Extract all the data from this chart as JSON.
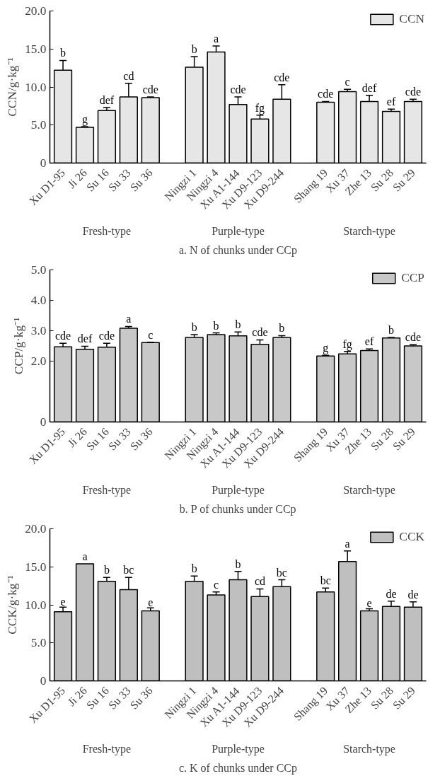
{
  "chart_data": [
    {
      "type": "bar",
      "title": "a. N of chunks under CCp",
      "ylabel": "CCN/g·kg⁻¹",
      "categories": [
        "Xu D1-95",
        "Ji 26",
        "Su 16",
        "Su 33",
        "Su 36",
        null,
        "Ningzi 1",
        "Ningzi 4",
        "Xu A1-144",
        "Xu D9-123",
        "Xu D9-244",
        null,
        "Shang 19",
        "Xu 37",
        "Zhe 13",
        "Su 28",
        "Su 29"
      ],
      "series": [
        {
          "name": "CCN",
          "color": "#e6e6e6",
          "values": [
            12.2,
            4.7,
            6.9,
            8.7,
            8.6,
            null,
            12.6,
            14.6,
            7.7,
            5.8,
            8.4,
            null,
            8.0,
            9.4,
            8.1,
            6.8,
            8.1
          ],
          "errors": [
            1.3,
            0.1,
            0.4,
            1.8,
            0.1,
            null,
            1.4,
            0.8,
            1.0,
            0.5,
            1.9,
            null,
            0.1,
            0.3,
            0.8,
            0.3,
            0.3
          ],
          "value_labels": [
            "b",
            "g",
            "def",
            "cd",
            "cde",
            null,
            "b",
            "a",
            "cde",
            "fg",
            "cde",
            null,
            "cde",
            "c",
            "def",
            "ef",
            "cde"
          ]
        }
      ],
      "annotations": [
        "Fresh-type",
        "Purple-type",
        "Starch-type"
      ],
      "ylim": [
        0,
        20
      ],
      "yticks": [
        0,
        {
          "value": 5,
          "label": "5.0"
        },
        {
          "value": 10,
          "label": "10.0"
        },
        {
          "value": 15,
          "label": "15.0"
        },
        {
          "value": 20,
          "label": "20.0"
        }
      ],
      "legend": "top right"
    },
    {
      "type": "bar",
      "title": "b. P of chunks under CCp",
      "ylabel": "CCP/g·kg⁻¹",
      "categories": [
        "Xu D1-95",
        "Ji 26",
        "Su 16",
        "Su 33",
        "Su 36",
        null,
        "Ningzi 1",
        "Ningzi 4",
        "Xu A1-144",
        "Xu D9-123",
        "Xu D9-244",
        null,
        "Shang 19",
        "Xu 37",
        "Zhe 13",
        "Su 28",
        "Su 29"
      ],
      "series": [
        {
          "name": "CCP",
          "color": "#c8c8c8",
          "values": [
            2.47,
            2.39,
            2.46,
            3.08,
            2.61,
            null,
            2.78,
            2.87,
            2.83,
            2.55,
            2.78,
            null,
            2.17,
            2.24,
            2.35,
            2.76,
            2.5
          ],
          "errors": [
            0.12,
            0.1,
            0.13,
            0.06,
            0.01,
            null,
            0.09,
            0.06,
            0.13,
            0.15,
            0.06,
            null,
            0.02,
            0.08,
            0.05,
            0.02,
            0.04
          ],
          "value_labels": [
            "cde",
            "def",
            "cde",
            "a",
            "c",
            null,
            "b",
            "b",
            "b",
            "cde",
            "b",
            null,
            "g",
            "fg",
            "ef",
            "b",
            "cde"
          ]
        }
      ],
      "annotations": [
        "Fresh-type",
        "Purple-type",
        "Starch-type"
      ],
      "ylim": [
        0,
        5
      ],
      "yticks": [
        0,
        {
          "value": 2,
          "label": "2.0"
        },
        {
          "value": 3,
          "label": "3.0"
        },
        {
          "value": 4,
          "label": "4.0"
        },
        {
          "value": 5,
          "label": "5.0"
        }
      ],
      "legend": "top right"
    },
    {
      "type": "bar",
      "title": "c. K of chunks under CCp",
      "ylabel": "CCK/g·kg⁻¹",
      "categories": [
        "Xu D1-95",
        "Ji 26",
        "Su 16",
        "Su 33",
        "Su 36",
        null,
        "Ningzi 1",
        "Ningzi 4",
        "Xu A1-144",
        "Xu D9-123",
        "Xu D9-244",
        null,
        "Shang 19",
        "Xu 37",
        "Zhe 13",
        "Su 28",
        "Su 29"
      ],
      "series": [
        {
          "name": "CCK",
          "color": "#bfbfbf",
          "values": [
            9.1,
            15.4,
            13.1,
            12.0,
            9.2,
            null,
            13.1,
            11.3,
            13.3,
            11.1,
            12.4,
            null,
            11.7,
            15.7,
            9.2,
            9.8,
            9.7
          ],
          "errors": [
            0.6,
            null,
            0.5,
            1.6,
            0.4,
            null,
            0.7,
            0.4,
            1.1,
            1.0,
            0.9,
            null,
            0.5,
            1.4,
            0.3,
            0.7,
            0.7
          ],
          "value_labels": [
            "e",
            "a",
            "b",
            "bc",
            "e",
            null,
            "b",
            "c",
            "b",
            "cd",
            "bc",
            null,
            "bc",
            "a",
            "e",
            "de",
            "de"
          ]
        }
      ],
      "annotations": [
        "Fresh-type",
        "Purple-type",
        "Starch-type"
      ],
      "ylim": [
        0,
        20
      ],
      "yticks": [
        0,
        {
          "value": 5,
          "label": "5.0"
        },
        {
          "value": 10,
          "label": "10.0"
        },
        {
          "value": 15,
          "label": "15.0"
        },
        {
          "value": 20,
          "label": "20.0"
        }
      ],
      "legend": "top right"
    }
  ]
}
